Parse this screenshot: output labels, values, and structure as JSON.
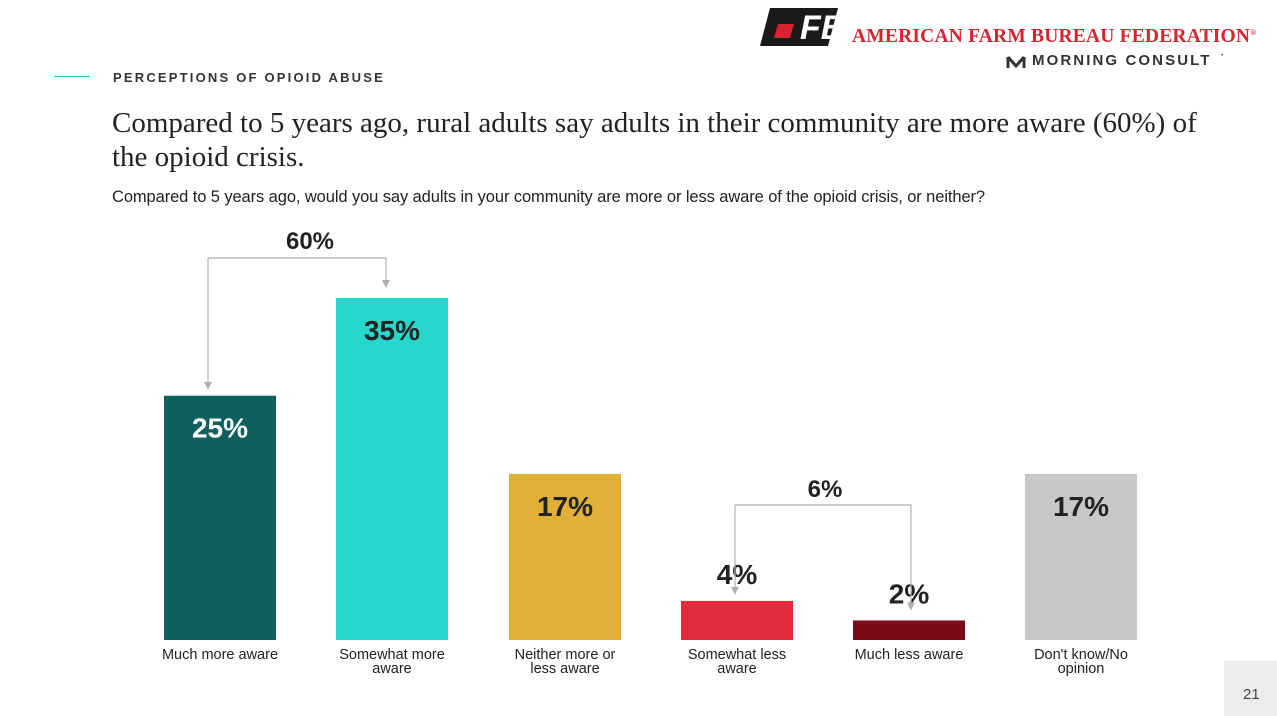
{
  "header": {
    "section_label": "PERCEPTIONS OF OPIOID ABUSE",
    "title": "Compared to 5 years ago, rural adults say adults in their community are more aware (60%) of the opioid crisis.",
    "question": "Compared to 5 years ago, would you say adults in your community are more or less aware of the opioid crisis, or neither?"
  },
  "branding": {
    "org_name": "AMERICAN FARM BUREAU FEDERATION",
    "org_mark": "®",
    "logo_letters": "FB",
    "partner_name": "MORNING CONSULT",
    "partner_mark": "•",
    "accent_red": "#d9232e",
    "accent_teal": "#2bc9c0"
  },
  "page_number": "21",
  "chart_data": {
    "type": "bar",
    "title": "",
    "xlabel": "",
    "ylabel": "",
    "ylim": [
      0,
      35
    ],
    "grid": false,
    "categories": [
      [
        "Much more aware"
      ],
      [
        "Somewhat more",
        "aware"
      ],
      [
        "Neither more or",
        "less aware"
      ],
      [
        "Somewhat less",
        "aware"
      ],
      [
        "Much less aware"
      ],
      [
        "Don't know/No",
        "opinion"
      ]
    ],
    "values": [
      25,
      35,
      17,
      4,
      2,
      17
    ],
    "value_labels": [
      "25%",
      "35%",
      "17%",
      "4%",
      "2%",
      "17%"
    ],
    "colors": [
      "#0e605e",
      "#28d7cb",
      "#e0b038",
      "#e22b3b",
      "#7a0b19",
      "#c8c8c8"
    ],
    "label_colors": [
      "#ffffff",
      "#222222",
      "#222222",
      "#222222",
      "#222222",
      "#222222"
    ],
    "label_inside": [
      true,
      true,
      true,
      false,
      false,
      true
    ],
    "groups": [
      {
        "label": "60%",
        "from": 0,
        "to": 1
      },
      {
        "label": "6%",
        "from": 3,
        "to": 4
      }
    ]
  }
}
